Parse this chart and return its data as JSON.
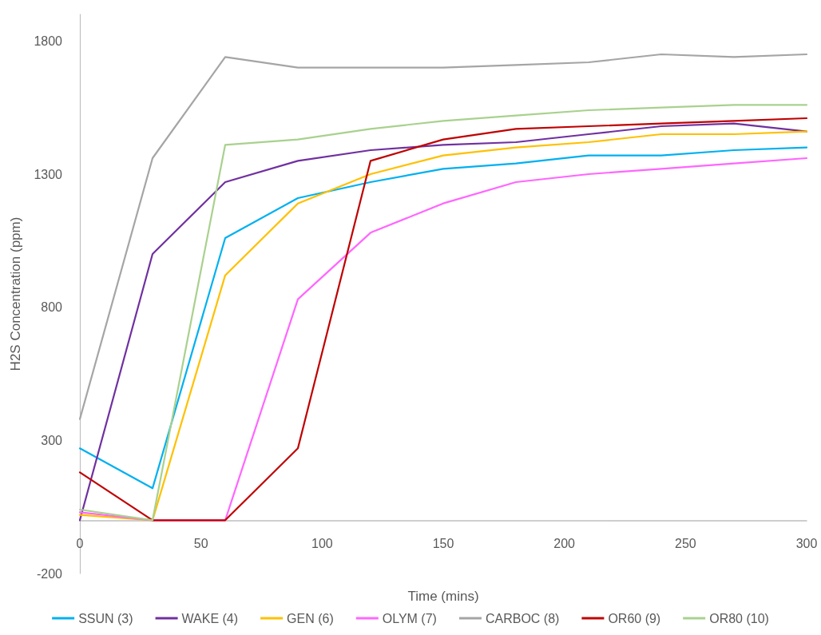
{
  "chart_data": {
    "type": "line",
    "xlabel": "Time (mins)",
    "ylabel": "H2S Concentration (ppm)",
    "x": [
      0,
      30,
      60,
      90,
      120,
      150,
      180,
      210,
      240,
      270,
      300
    ],
    "xlim": [
      0,
      300
    ],
    "xticks": [
      0,
      50,
      100,
      150,
      200,
      250,
      300
    ],
    "ylim": [
      -200,
      1900
    ],
    "yticks": [
      -200,
      300,
      800,
      1300,
      1800
    ],
    "grid": false,
    "legend": "bottom",
    "marker": "none",
    "line_style": "solid",
    "series": [
      {
        "name": "SSUN (3)",
        "color": "#00b0f0",
        "values": [
          270,
          120,
          1060,
          1210,
          1270,
          1320,
          1340,
          1370,
          1370,
          1390,
          1400
        ]
      },
      {
        "name": "WAKE (4)",
        "color": "#7030a0",
        "values": [
          0,
          1000,
          1270,
          1350,
          1390,
          1410,
          1420,
          1450,
          1480,
          1490,
          1460
        ]
      },
      {
        "name": "GEN (6)",
        "color": "#ffc000",
        "values": [
          20,
          0,
          920,
          1190,
          1300,
          1370,
          1400,
          1420,
          1450,
          1450,
          1460
        ]
      },
      {
        "name": "OLYM (7)",
        "color": "#ff66ff",
        "values": [
          30,
          0,
          0,
          830,
          1080,
          1190,
          1270,
          1300,
          1320,
          1340,
          1360
        ]
      },
      {
        "name": "CARBOC (8)",
        "color": "#a5a5a5",
        "values": [
          380,
          1360,
          1740,
          1700,
          1700,
          1700,
          1710,
          1720,
          1750,
          1740,
          1750
        ]
      },
      {
        "name": "OR60 (9)",
        "color": "#c00000",
        "values": [
          180,
          0,
          0,
          270,
          1350,
          1430,
          1470,
          1480,
          1490,
          1500,
          1510
        ]
      },
      {
        "name": "OR80 (10)",
        "color": "#a9d18e",
        "values": [
          40,
          0,
          1410,
          1430,
          1470,
          1500,
          1520,
          1540,
          1550,
          1560,
          1560
        ]
      }
    ]
  }
}
